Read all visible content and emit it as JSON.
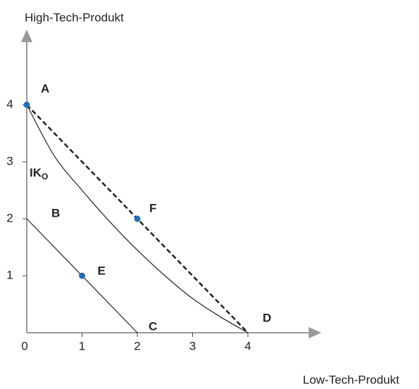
{
  "chart_data": {
    "type": "line",
    "y_label": "High-Tech-Produkt",
    "x_label": "Low-Tech-Produkt",
    "xlim": [
      0,
      5.1
    ],
    "ylim": [
      0,
      5.1
    ],
    "xticks": [
      0,
      1,
      2,
      3,
      4
    ],
    "yticks": [
      1,
      2,
      3,
      4
    ],
    "series": [
      {
        "x": [
          0,
          4
        ],
        "values": [
          4,
          0
        ],
        "color": "#222222",
        "dashed": true
      },
      {
        "x": [
          0,
          0.5,
          1,
          1.5,
          2,
          2.5,
          3,
          3.5,
          4
        ],
        "values": [
          4,
          3.1,
          2.5,
          1.95,
          1.45,
          1.0,
          0.6,
          0.28,
          0
        ],
        "color": "#222222",
        "dashed": false
      },
      {
        "x": [
          0,
          2
        ],
        "values": [
          2,
          0
        ],
        "color": "#222222",
        "dashed": false
      }
    ],
    "curve_label": {
      "text": "IK",
      "sub": "O"
    },
    "points": [
      {
        "label": "A",
        "x": 0,
        "y": 4,
        "marker": true
      },
      {
        "label": "B",
        "x": 0,
        "y": 2,
        "marker": false
      },
      {
        "label": "C",
        "x": 2,
        "y": 0,
        "marker": false
      },
      {
        "label": "D",
        "x": 4,
        "y": 0,
        "marker": false
      },
      {
        "label": "E",
        "x": 1,
        "y": 1,
        "marker": true
      },
      {
        "label": "F",
        "x": 2,
        "y": 2,
        "marker": true
      }
    ],
    "marker_color": "#1f6fb5",
    "axis_color": "#999999"
  }
}
